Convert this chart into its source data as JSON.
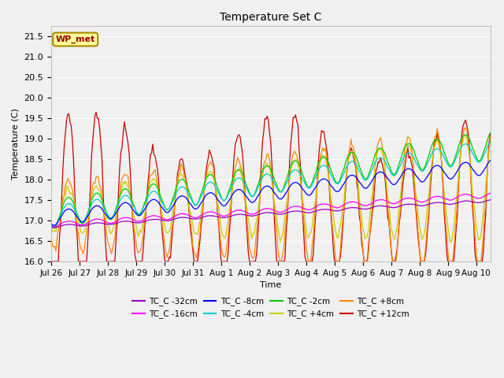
{
  "title": "Temperature Set C",
  "xlabel": "Time",
  "ylabel": "Temperature (C)",
  "ylim": [
    16.0,
    21.75
  ],
  "background_color": "#f0f0f0",
  "series": [
    {
      "label": "TC_C -32cm",
      "color": "#9900cc",
      "depth": -32
    },
    {
      "label": "TC_C -16cm",
      "color": "#ff00ff",
      "depth": -16
    },
    {
      "label": "TC_C -8cm",
      "color": "#0000ff",
      "depth": -8
    },
    {
      "label": "TC_C -4cm",
      "color": "#00cccc",
      "depth": -4
    },
    {
      "label": "TC_C -2cm",
      "color": "#00cc00",
      "depth": -2
    },
    {
      "label": "TC_C +4cm",
      "color": "#cccc00",
      "depth": 4
    },
    {
      "label": "TC_C +8cm",
      "color": "#ff8800",
      "depth": 8
    },
    {
      "label": "TC_C +12cm",
      "color": "#cc0000",
      "depth": 12
    }
  ],
  "wp_met_label": "WP_met",
  "wp_met_bg": "#ffff99",
  "wp_met_border": "#aa8800",
  "tick_dates": [
    "Jul 26",
    "Jul 27",
    "Jul 28",
    "Jul 29",
    "Jul 30",
    "Jul 31",
    "Aug 1",
    "Aug 2",
    "Aug 3",
    "Aug 4",
    "Aug 5",
    "Aug 6",
    "Aug 7",
    "Aug 8",
    "Aug 9",
    "Aug 10"
  ],
  "grid_color": "#ffffff",
  "n_days": 15.5
}
